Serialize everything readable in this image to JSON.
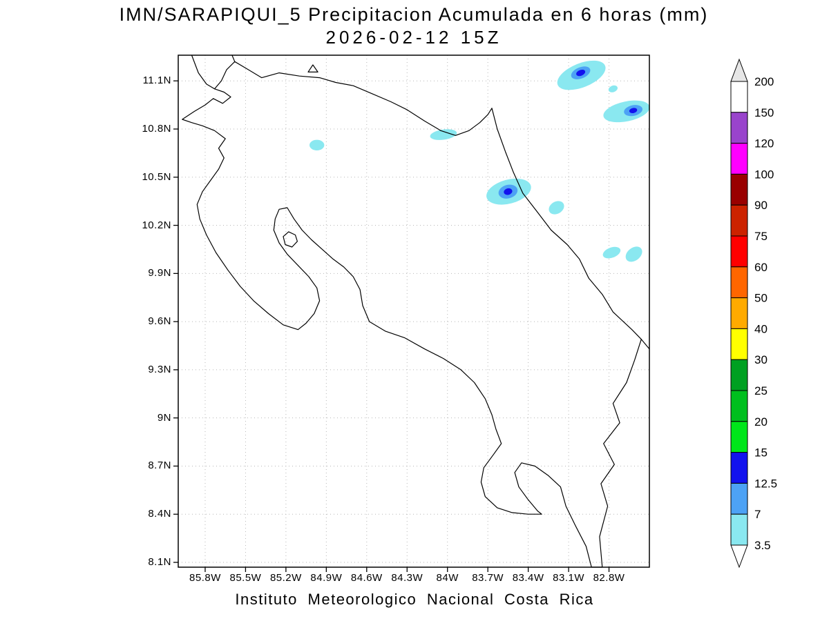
{
  "header": {
    "title_line1": "IMN/SARAPIQUI_5 Precipitacion Acumulada en 6 horas (mm)",
    "title_line2": "2026-02-12 15Z"
  },
  "footer": {
    "caption": "Instituto Meteorologico Nacional Costa Rica"
  },
  "map": {
    "domain": {
      "lon_west": 86.0,
      "lon_east": 82.5,
      "lat_north": 11.26,
      "lat_south": 8.07
    },
    "lat_ticks": [
      {
        "label": "11.1N",
        "lat": 11.1
      },
      {
        "label": "10.8N",
        "lat": 10.8
      },
      {
        "label": "10.5N",
        "lat": 10.5
      },
      {
        "label": "10.2N",
        "lat": 10.2
      },
      {
        "label": "9.9N",
        "lat": 9.9
      },
      {
        "label": "9.6N",
        "lat": 9.6
      },
      {
        "label": "9.3N",
        "lat": 9.3
      },
      {
        "label": "9N",
        "lat": 9.0
      },
      {
        "label": "8.7N",
        "lat": 8.7
      },
      {
        "label": "8.4N",
        "lat": 8.4
      },
      {
        "label": "8.1N",
        "lat": 8.1
      }
    ],
    "lon_ticks": [
      {
        "label": "85.8W",
        "lon": 85.8
      },
      {
        "label": "85.5W",
        "lon": 85.5
      },
      {
        "label": "85.2W",
        "lon": 85.2
      },
      {
        "label": "84.9W",
        "lon": 84.9
      },
      {
        "label": "84.6W",
        "lon": 84.6
      },
      {
        "label": "84.3W",
        "lon": 84.3
      },
      {
        "label": "84W",
        "lon": 84.0
      },
      {
        "label": "83.7W",
        "lon": 83.7
      },
      {
        "label": "83.4W",
        "lon": 83.4
      },
      {
        "label": "83.1W",
        "lon": 83.1
      },
      {
        "label": "82.8W",
        "lon": 82.8
      }
    ],
    "coastlines": [
      {
        "name": "costa-rica-mainland",
        "closed": true,
        "points": [
          [
            85.97,
            10.86
          ],
          [
            85.88,
            10.91
          ],
          [
            85.8,
            10.95
          ],
          [
            85.74,
            10.99
          ],
          [
            85.67,
            10.96
          ],
          [
            85.61,
            11.0
          ],
          [
            85.66,
            11.03
          ],
          [
            85.73,
            11.05
          ],
          [
            85.68,
            11.1
          ],
          [
            85.64,
            11.17
          ],
          [
            85.58,
            11.22
          ],
          [
            85.48,
            11.17
          ],
          [
            85.38,
            11.12
          ],
          [
            85.25,
            11.15
          ],
          [
            85.1,
            11.13
          ],
          [
            84.95,
            11.12
          ],
          [
            84.83,
            11.09
          ],
          [
            84.7,
            11.07
          ],
          [
            84.56,
            11.02
          ],
          [
            84.42,
            10.97
          ],
          [
            84.3,
            10.92
          ],
          [
            84.17,
            10.85
          ],
          [
            84.05,
            10.79
          ],
          [
            83.94,
            10.76
          ],
          [
            83.84,
            10.79
          ],
          [
            83.76,
            10.84
          ],
          [
            83.7,
            10.89
          ],
          [
            83.67,
            10.93
          ],
          [
            83.63,
            10.8
          ],
          [
            83.57,
            10.66
          ],
          [
            83.51,
            10.53
          ],
          [
            83.44,
            10.4
          ],
          [
            83.33,
            10.28
          ],
          [
            83.23,
            10.17
          ],
          [
            83.11,
            10.08
          ],
          [
            83.02,
            9.99
          ],
          [
            82.95,
            9.87
          ],
          [
            82.85,
            9.77
          ],
          [
            82.77,
            9.66
          ],
          [
            82.63,
            9.55
          ],
          [
            82.56,
            9.49
          ],
          [
            82.61,
            9.36
          ],
          [
            82.67,
            9.22
          ],
          [
            82.77,
            9.09
          ],
          [
            82.72,
            8.97
          ],
          [
            82.84,
            8.84
          ],
          [
            82.76,
            8.71
          ],
          [
            82.86,
            8.59
          ],
          [
            82.81,
            8.45
          ],
          [
            82.87,
            8.26
          ],
          [
            82.85,
            8.07
          ],
          [
            82.93,
            8.07
          ],
          [
            82.97,
            8.2
          ],
          [
            83.05,
            8.33
          ],
          [
            83.12,
            8.45
          ],
          [
            83.16,
            8.57
          ],
          [
            83.25,
            8.64
          ],
          [
            83.35,
            8.7
          ],
          [
            83.45,
            8.72
          ],
          [
            83.5,
            8.66
          ],
          [
            83.47,
            8.57
          ],
          [
            83.4,
            8.49
          ],
          [
            83.33,
            8.42
          ],
          [
            83.3,
            8.4
          ],
          [
            83.4,
            8.4
          ],
          [
            83.52,
            8.41
          ],
          [
            83.63,
            8.44
          ],
          [
            83.72,
            8.51
          ],
          [
            83.75,
            8.6
          ],
          [
            83.73,
            8.69
          ],
          [
            83.66,
            8.77
          ],
          [
            83.6,
            8.84
          ],
          [
            83.64,
            8.93
          ],
          [
            83.67,
            9.02
          ],
          [
            83.72,
            9.12
          ],
          [
            83.8,
            9.22
          ],
          [
            83.9,
            9.3
          ],
          [
            84.03,
            9.37
          ],
          [
            84.17,
            9.43
          ],
          [
            84.32,
            9.5
          ],
          [
            84.46,
            9.54
          ],
          [
            84.58,
            9.6
          ],
          [
            84.63,
            9.7
          ],
          [
            84.65,
            9.8
          ],
          [
            84.7,
            9.88
          ],
          [
            84.77,
            9.94
          ],
          [
            84.85,
            9.99
          ],
          [
            84.93,
            10.05
          ],
          [
            85.01,
            10.11
          ],
          [
            85.08,
            10.17
          ],
          [
            85.14,
            10.24
          ],
          [
            85.19,
            10.31
          ],
          [
            85.25,
            10.3
          ],
          [
            85.28,
            10.24
          ],
          [
            85.29,
            10.17
          ],
          [
            85.25,
            10.09
          ],
          [
            85.19,
            10.02
          ],
          [
            85.11,
            9.95
          ],
          [
            85.03,
            9.88
          ],
          [
            84.97,
            9.81
          ],
          [
            84.95,
            9.73
          ],
          [
            84.99,
            9.65
          ],
          [
            85.05,
            9.59
          ],
          [
            85.11,
            9.55
          ],
          [
            85.22,
            9.58
          ],
          [
            85.33,
            9.65
          ],
          [
            85.44,
            9.73
          ],
          [
            85.54,
            9.82
          ],
          [
            85.63,
            9.92
          ],
          [
            85.72,
            10.03
          ],
          [
            85.79,
            10.14
          ],
          [
            85.84,
            10.24
          ],
          [
            85.86,
            10.33
          ],
          [
            85.82,
            10.41
          ],
          [
            85.76,
            10.48
          ],
          [
            85.7,
            10.55
          ],
          [
            85.66,
            10.62
          ],
          [
            85.7,
            10.68
          ],
          [
            85.65,
            10.74
          ],
          [
            85.73,
            10.79
          ],
          [
            85.82,
            10.82
          ],
          [
            85.9,
            10.84
          ]
        ]
      },
      {
        "name": "chira-island",
        "closed": true,
        "points": [
          [
            85.22,
            10.13
          ],
          [
            85.18,
            10.16
          ],
          [
            85.13,
            10.14
          ],
          [
            85.115,
            10.1
          ],
          [
            85.155,
            10.065
          ],
          [
            85.205,
            10.08
          ]
        ]
      },
      {
        "name": "lake-nicaragua-island",
        "closed": true,
        "points": [
          [
            85.0,
            11.2
          ],
          [
            84.963,
            11.155
          ],
          [
            85.035,
            11.155
          ]
        ]
      },
      {
        "name": "nicaragua-pacific-coast",
        "closed": false,
        "points": [
          [
            85.9,
            11.26
          ],
          [
            85.85,
            11.15
          ],
          [
            85.79,
            11.08
          ],
          [
            85.73,
            11.05
          ]
        ]
      },
      {
        "name": "lake-nicaragua-shore-stub",
        "closed": false,
        "points": [
          [
            85.6,
            11.26
          ],
          [
            85.58,
            11.22
          ]
        ]
      },
      {
        "name": "panama-caribbean-coast",
        "closed": false,
        "points": [
          [
            82.56,
            9.49
          ],
          [
            82.5,
            9.43
          ]
        ]
      }
    ],
    "precipitation": [
      {
        "lon": 83.005,
        "lat": 11.135,
        "rx": 0.19,
        "ry": 0.075,
        "rot": -22,
        "level": 3.5
      },
      {
        "lon": 83.01,
        "lat": 11.15,
        "rx": 0.075,
        "ry": 0.035,
        "rot": -22,
        "level": 7
      },
      {
        "lon": 83.01,
        "lat": 11.15,
        "rx": 0.035,
        "ry": 0.018,
        "rot": -22,
        "level": 12.5
      },
      {
        "lon": 82.77,
        "lat": 11.05,
        "rx": 0.035,
        "ry": 0.02,
        "rot": -20,
        "level": 3.5
      },
      {
        "lon": 82.67,
        "lat": 10.91,
        "rx": 0.175,
        "ry": 0.062,
        "rot": -12,
        "level": 3.5
      },
      {
        "lon": 82.62,
        "lat": 10.915,
        "rx": 0.07,
        "ry": 0.033,
        "rot": -12,
        "level": 7
      },
      {
        "lon": 82.62,
        "lat": 10.915,
        "rx": 0.03,
        "ry": 0.016,
        "rot": -12,
        "level": 12.5
      },
      {
        "lon": 84.03,
        "lat": 10.765,
        "rx": 0.1,
        "ry": 0.032,
        "rot": -8,
        "level": 3.5
      },
      {
        "lon": 84.97,
        "lat": 10.7,
        "rx": 0.055,
        "ry": 0.033,
        "rot": 0,
        "level": 3.5
      },
      {
        "lon": 83.545,
        "lat": 10.41,
        "rx": 0.17,
        "ry": 0.075,
        "rot": -15,
        "level": 3.5
      },
      {
        "lon": 83.55,
        "lat": 10.41,
        "rx": 0.072,
        "ry": 0.042,
        "rot": -15,
        "level": 7
      },
      {
        "lon": 83.55,
        "lat": 10.41,
        "rx": 0.032,
        "ry": 0.02,
        "rot": -15,
        "level": 12.5
      },
      {
        "lon": 83.19,
        "lat": 10.31,
        "rx": 0.06,
        "ry": 0.038,
        "rot": -30,
        "level": 3.5
      },
      {
        "lon": 82.78,
        "lat": 10.03,
        "rx": 0.068,
        "ry": 0.032,
        "rot": -20,
        "level": 3.5
      },
      {
        "lon": 82.615,
        "lat": 10.02,
        "rx": 0.068,
        "ry": 0.04,
        "rot": -38,
        "level": 3.5
      }
    ]
  },
  "legend": {
    "boundaries": [
      200,
      150,
      120,
      100,
      90,
      75,
      60,
      50,
      40,
      30,
      25,
      20,
      15,
      12.5,
      7,
      3.5
    ],
    "labels": [
      "200",
      "150",
      "120",
      "100",
      "90",
      "75",
      "60",
      "50",
      "40",
      "30",
      "25",
      "20",
      "15",
      "12.5",
      "7",
      "3.5"
    ],
    "band_colors": [
      "#ffffff",
      "#9944cc",
      "#ff00ff",
      "#990000",
      "#cc2200",
      "#ff0000",
      "#ff6600",
      "#ffaa00",
      "#ffff00",
      "#00a021",
      "#00bf1e",
      "#00e61a",
      "#1212ee",
      "#4da2f5",
      "#8ae8f0"
    ],
    "above_color": "#e6e6e6",
    "below_color": "#ffffff"
  }
}
